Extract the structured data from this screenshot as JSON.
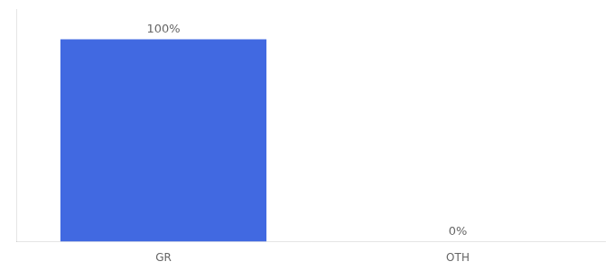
{
  "chart_data": {
    "type": "bar",
    "categories": [
      "GR",
      "OTH"
    ],
    "values": [
      100,
      0
    ],
    "value_labels": [
      "100%",
      "0%"
    ],
    "data_labels": true,
    "color": "#4169e1",
    "ylim": [
      0,
      115
    ],
    "tick_labels": "x",
    "grid": false
  }
}
